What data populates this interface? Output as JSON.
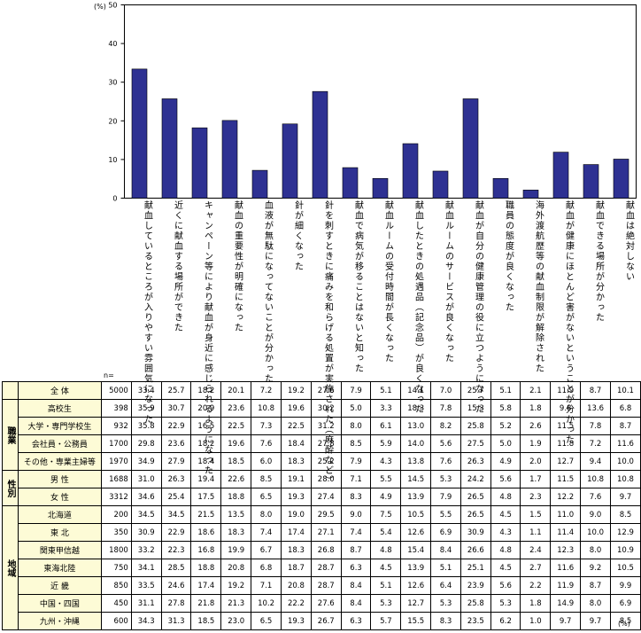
{
  "chart_data": {
    "type": "bar",
    "y_unit": "(%)",
    "ylim": [
      0,
      50
    ],
    "y_ticks": [
      "0",
      "10",
      "20",
      "30",
      "40",
      "50"
    ],
    "bar_color": "#2e3192",
    "categories": [
      "献血しているところが入りやすい雰囲気になった",
      "近くに献血する場所ができた",
      "キャンペーン等により献血が身近に感じられるようになった",
      "献血の重要性が明確になった",
      "血液が無駄になってないことが分かった",
      "針が細くなった",
      "針を刺すときに痛みを和らげる処置が実施された（麻酔など）",
      "献血で病気が移ることはないと知った",
      "献血ルームの受付時間が長くなった",
      "献血したときの処遇品（記念品）が良くなった",
      "献血ルームのサービスが良くなった",
      "献血が自分の健康管理の役に立つようになった",
      "職員の態度が良くなった",
      "海外渡航歴等の献血制限が解除された",
      "献血が健康にほとんど害がないということが分かった",
      "献血できる場所が分かった",
      "献血は絶対しない"
    ],
    "values": [
      33.4,
      25.7,
      18.2,
      20.1,
      7.2,
      19.2,
      27.6,
      7.9,
      5.1,
      14.1,
      7.0,
      25.7,
      5.1,
      2.1,
      11.9,
      8.7,
      10.1
    ]
  },
  "table": {
    "n_label": "n=",
    "unit_bottom": "(%)",
    "groups": [
      {
        "label": "",
        "rows": [
          {
            "label": "全 体",
            "n": "5000",
            "values": [
              "33.4",
              "25.7",
              "18.2",
              "20.1",
              "7.2",
              "19.2",
              "27.6",
              "7.9",
              "5.1",
              "14.1",
              "7.0",
              "25.7",
              "5.1",
              "2.1",
              "11.9",
              "8.7",
              "10.1"
            ]
          }
        ]
      },
      {
        "label": "職業",
        "rows": [
          {
            "label": "高校生",
            "n": "398",
            "values": [
              "35.9",
              "30.7",
              "20.9",
              "23.6",
              "10.8",
              "19.6",
              "30.2",
              "5.0",
              "3.3",
              "18.3",
              "7.8",
              "15.3",
              "5.8",
              "1.8",
              "9.8",
              "13.6",
              "6.8"
            ]
          },
          {
            "label": "大学・専門学校生",
            "n": "932",
            "values": [
              "35.8",
              "22.9",
              "16.5",
              "22.5",
              "7.3",
              "22.5",
              "31.2",
              "8.0",
              "6.1",
              "13.0",
              "8.2",
              "25.8",
              "5.2",
              "2.6",
              "11.5",
              "7.8",
              "8.7"
            ]
          },
          {
            "label": "会社員・公務員",
            "n": "1700",
            "values": [
              "29.8",
              "23.6",
              "18.2",
              "19.6",
              "7.6",
              "18.4",
              "27.8",
              "8.5",
              "5.9",
              "14.0",
              "5.6",
              "27.5",
              "5.0",
              "1.9",
              "11.8",
              "7.2",
              "11.6"
            ]
          },
          {
            "label": "その他・専業主婦等",
            "n": "1970",
            "values": [
              "34.9",
              "27.9",
              "18.4",
              "18.5",
              "6.0",
              "18.3",
              "25.2",
              "7.9",
              "4.3",
              "13.8",
              "7.6",
              "26.3",
              "4.9",
              "2.0",
              "12.7",
              "9.4",
              "10.0"
            ]
          }
        ]
      },
      {
        "label": "性別",
        "rows": [
          {
            "label": "男 性",
            "n": "1688",
            "values": [
              "31.0",
              "26.3",
              "19.4",
              "22.6",
              "8.5",
              "19.1",
              "28.0",
              "7.1",
              "5.5",
              "14.5",
              "5.3",
              "24.2",
              "5.6",
              "1.7",
              "11.5",
              "10.8",
              "10.8"
            ]
          },
          {
            "label": "女 性",
            "n": "3312",
            "values": [
              "34.6",
              "25.4",
              "17.5",
              "18.8",
              "6.5",
              "19.3",
              "27.4",
              "8.3",
              "4.9",
              "13.9",
              "7.9",
              "26.5",
              "4.8",
              "2.3",
              "12.2",
              "7.6",
              "9.7"
            ]
          }
        ]
      },
      {
        "label": "地域",
        "rows": [
          {
            "label": "北海道",
            "n": "200",
            "values": [
              "34.5",
              "34.5",
              "21.5",
              "13.5",
              "8.0",
              "19.0",
              "29.5",
              "9.0",
              "7.5",
              "10.5",
              "5.5",
              "26.5",
              "4.5",
              "1.5",
              "11.0",
              "9.0",
              "8.5"
            ]
          },
          {
            "label": "東 北",
            "n": "350",
            "values": [
              "30.9",
              "22.9",
              "18.6",
              "18.3",
              "7.4",
              "17.4",
              "27.1",
              "7.4",
              "5.4",
              "12.6",
              "6.9",
              "30.9",
              "4.3",
              "1.1",
              "11.4",
              "10.0",
              "12.9"
            ]
          },
          {
            "label": "関東甲信越",
            "n": "1800",
            "values": [
              "33.2",
              "22.3",
              "16.8",
              "19.9",
              "6.7",
              "18.3",
              "26.8",
              "8.7",
              "4.8",
              "15.4",
              "8.4",
              "26.6",
              "4.8",
              "2.4",
              "12.3",
              "8.0",
              "10.9"
            ]
          },
          {
            "label": "東海北陸",
            "n": "750",
            "values": [
              "34.1",
              "28.5",
              "18.8",
              "20.8",
              "6.8",
              "18.7",
              "28.7",
              "6.3",
              "4.5",
              "13.9",
              "5.1",
              "25.1",
              "4.5",
              "2.7",
              "11.6",
              "9.2",
              "10.5"
            ]
          },
          {
            "label": "近 畿",
            "n": "850",
            "values": [
              "33.5",
              "24.6",
              "17.4",
              "19.2",
              "7.1",
              "20.8",
              "28.7",
              "8.4",
              "5.1",
              "12.6",
              "6.4",
              "23.9",
              "5.6",
              "2.2",
              "11.9",
              "8.7",
              "9.9"
            ]
          },
          {
            "label": "中国・四国",
            "n": "450",
            "values": [
              "31.1",
              "27.8",
              "21.8",
              "21.3",
              "10.2",
              "22.2",
              "27.6",
              "8.4",
              "5.3",
              "12.7",
              "5.3",
              "25.8",
              "5.3",
              "1.8",
              "14.9",
              "8.0",
              "6.9"
            ]
          },
          {
            "label": "九州・沖縄",
            "n": "600",
            "values": [
              "34.3",
              "31.3",
              "18.5",
              "23.0",
              "6.5",
              "19.3",
              "26.7",
              "6.3",
              "5.7",
              "15.5",
              "8.3",
              "23.5",
              "6.2",
              "1.0",
              "9.7",
              "9.7",
              "8.5"
            ]
          }
        ]
      }
    ]
  }
}
